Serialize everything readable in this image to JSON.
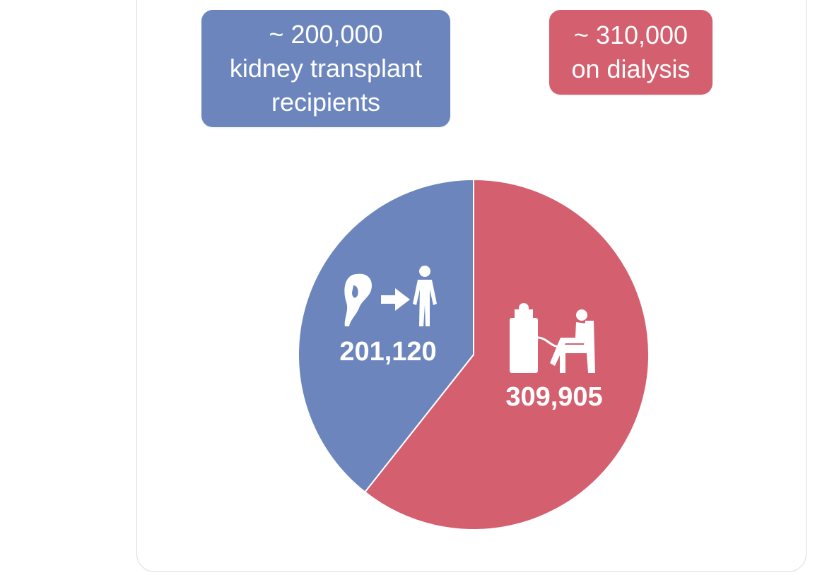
{
  "callouts": {
    "transplant": {
      "lines": [
        "~ 200,000",
        "kidney transplant",
        "recipients"
      ],
      "color": "#6c86bd"
    },
    "dialysis": {
      "lines": [
        "~ 310,000",
        "on dialysis"
      ],
      "color": "#d45f6f"
    }
  },
  "chart_data": {
    "type": "pie",
    "title": "",
    "slices": [
      {
        "name": "kidney transplant recipients",
        "value": 201120,
        "label": "201,120",
        "color": "#6c86bd",
        "icon": "kidney-to-person-icon"
      },
      {
        "name": "on dialysis",
        "value": 309905,
        "label": "309,905",
        "color": "#d45f6f",
        "icon": "dialysis-patient-icon"
      }
    ],
    "legend": "none"
  }
}
